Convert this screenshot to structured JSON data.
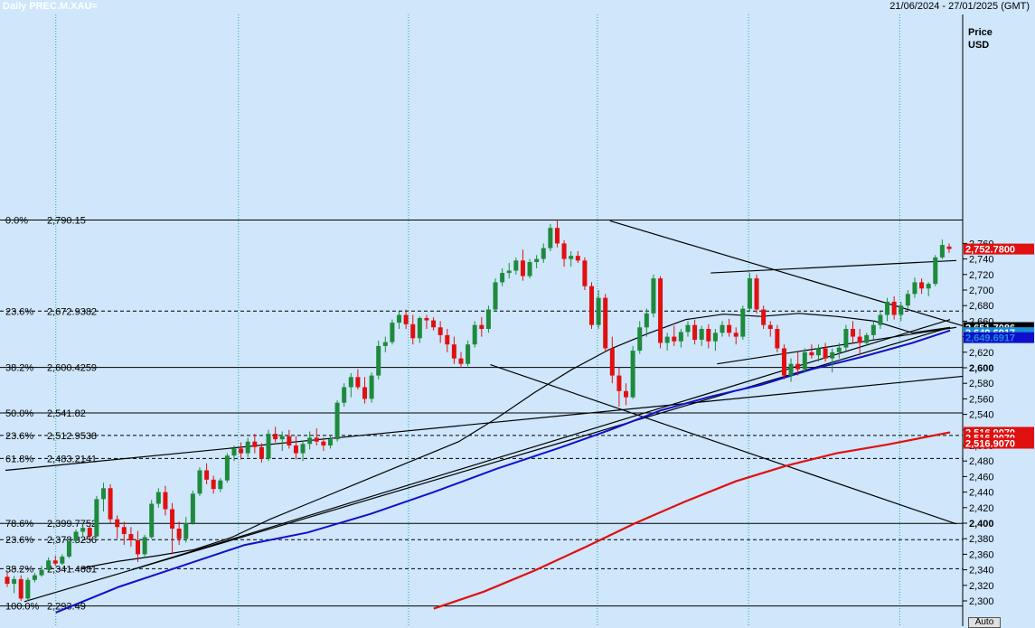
{
  "header": {
    "title": "Daily PREC.M.XAU=",
    "date_range": "21/06/2024 - 27/01/2025 (GMT)"
  },
  "axis": {
    "title_line1": "Price",
    "title_line2": "USD",
    "ticks": [
      2300,
      2320,
      2340,
      2360,
      2380,
      2400,
      2420,
      2440,
      2460,
      2480,
      2500,
      2520,
      2540,
      2560,
      2580,
      2600,
      2620,
      2640,
      2660,
      2680,
      2700,
      2720,
      2740,
      2760
    ],
    "tick_labels": [
      "2,300",
      "2,320",
      "2,340",
      "2,360",
      "2,380",
      "2,400",
      "2,420",
      "2,440",
      "2,460",
      "2,480",
      "2,500",
      "2,520",
      "2,540",
      "2,560",
      "2,580",
      "2,600",
      "2,620",
      "2,640",
      "2,660",
      "2,680",
      "2,700",
      "2,720",
      "2,740",
      "2,760"
    ],
    "bold_ticks": [
      2400,
      2600
    ]
  },
  "auto_button": "Auto",
  "colors": {
    "background": "#cfe6fb",
    "bull": "#1e8a3c",
    "bear": "#e01010",
    "ma_short": "#000000",
    "ma_mid": "#1010cc",
    "ma_long": "#e01010",
    "grid": "#2aa89a"
  },
  "chart_data": {
    "type": "candlestick",
    "y_range": [
      2290,
      2792
    ],
    "x_range_days": 152,
    "fib_levels": [
      {
        "pct": "0.0%",
        "label": "2,790.15",
        "value": 2790.15,
        "style": "solid"
      },
      {
        "pct": "23.6%",
        "label": "2,672.9382",
        "value": 2672.9382,
        "style": "dashed"
      },
      {
        "pct": "38.2%",
        "label": "2,600.4259",
        "value": 2600.4259,
        "style": "solid"
      },
      {
        "pct": "50.0%",
        "label": "2,541.82",
        "value": 2541.82,
        "style": "solid"
      },
      {
        "pct": "23.6%",
        "label": "2,512.9538",
        "value": 2512.9538,
        "style": "dashed"
      },
      {
        "pct": "61.8%",
        "label": "2,483.2141",
        "value": 2483.2141,
        "style": "dashed"
      },
      {
        "pct": "78.6%",
        "label": "2,399.7752",
        "value": 2399.7752,
        "style": "solid"
      },
      {
        "pct": "23.6%",
        "label": "2,378.8256",
        "value": 2378.8256,
        "style": "dashed"
      },
      {
        "pct": "38.2%",
        "label": "2,341.4681",
        "value": 2341.4681,
        "style": "dashed"
      },
      {
        "pct": "100.0%",
        "label": "2,293.49",
        "value": 2293.49,
        "style": "solid"
      }
    ],
    "badges": [
      {
        "label": "2,752.7800",
        "value": 2752.78,
        "color": "#e01010",
        "text_color": "#ffffff"
      },
      {
        "label": "2,651.7086",
        "value": 2651.7086,
        "color": "#000000",
        "text_color": "#ffffff"
      },
      {
        "label": "2,649.6917",
        "value": 2645.2,
        "color": "#1a8fd6",
        "text_color": "#ffffff"
      },
      {
        "label": "2,649.6917",
        "value": 2638.8,
        "color": "#1010cc",
        "text_color": "#1a8fd6"
      },
      {
        "label": "2,516.9070",
        "value": 2516.907,
        "color": "#e01010",
        "text_color": "#ffffff"
      },
      {
        "label": "2,516.9070",
        "value": 2509.9,
        "color": "#e01010",
        "text_color": "#ffffff"
      },
      {
        "label": "2,516.9070",
        "value": 2502.9,
        "color": "#e01010",
        "text_color": "#ffffff"
      }
    ],
    "vertical_grid_days": [
      8,
      37,
      64,
      94,
      118,
      142
    ],
    "trendlines": [
      {
        "x1": 0,
        "y1": 2468,
        "x2": 152,
        "y2": 2589
      },
      {
        "x1": 3,
        "y1": 2299,
        "x2": 150,
        "y2": 2652
      },
      {
        "x1": 20,
        "y1": 2340,
        "x2": 150,
        "y2": 2662
      },
      {
        "x1": 96,
        "y1": 2789,
        "x2": 152,
        "y2": 2654
      },
      {
        "x1": 77,
        "y1": 2604,
        "x2": 151,
        "y2": 2399
      },
      {
        "x1": 112,
        "y1": 2722,
        "x2": 151,
        "y2": 2738
      },
      {
        "x1": 113,
        "y1": 2605,
        "x2": 151,
        "y2": 2652
      }
    ],
    "ma_short": [
      [
        12,
        2342
      ],
      [
        18,
        2351
      ],
      [
        24,
        2358
      ],
      [
        30,
        2366
      ],
      [
        36,
        2382
      ],
      [
        42,
        2405
      ],
      [
        48,
        2425
      ],
      [
        54,
        2445
      ],
      [
        60,
        2465
      ],
      [
        66,
        2485
      ],
      [
        72,
        2505
      ],
      [
        78,
        2535
      ],
      [
        84,
        2568
      ],
      [
        90,
        2598
      ],
      [
        96,
        2624
      ],
      [
        102,
        2644
      ],
      [
        108,
        2662
      ],
      [
        114,
        2669
      ],
      [
        120,
        2666
      ],
      [
        126,
        2670
      ],
      [
        132,
        2666
      ],
      [
        138,
        2660
      ],
      [
        144,
        2645
      ],
      [
        150,
        2652
      ]
    ],
    "ma_mid": [
      [
        8,
        2285
      ],
      [
        18,
        2318
      ],
      [
        28,
        2345
      ],
      [
        38,
        2372
      ],
      [
        48,
        2388
      ],
      [
        58,
        2412
      ],
      [
        68,
        2440
      ],
      [
        78,
        2470
      ],
      [
        88,
        2497
      ],
      [
        96,
        2520
      ],
      [
        104,
        2545
      ],
      [
        112,
        2563
      ],
      [
        120,
        2578
      ],
      [
        128,
        2598
      ],
      [
        136,
        2614
      ],
      [
        144,
        2632
      ],
      [
        150,
        2648
      ]
    ],
    "ma_long": [
      [
        68,
        2290
      ],
      [
        76,
        2312
      ],
      [
        84,
        2339
      ],
      [
        92,
        2369
      ],
      [
        100,
        2400
      ],
      [
        108,
        2428
      ],
      [
        116,
        2454
      ],
      [
        124,
        2474
      ],
      [
        132,
        2490
      ],
      [
        140,
        2501
      ],
      [
        150,
        2517
      ]
    ],
    "candles": [
      [
        2331,
        2337,
        2318,
        2322
      ],
      [
        2322,
        2332,
        2310,
        2328
      ],
      [
        2328,
        2333,
        2300,
        2303
      ],
      [
        2303,
        2330,
        2300,
        2327
      ],
      [
        2327,
        2336,
        2324,
        2333
      ],
      [
        2333,
        2345,
        2331,
        2340
      ],
      [
        2340,
        2356,
        2338,
        2352
      ],
      [
        2352,
        2358,
        2345,
        2348
      ],
      [
        2348,
        2360,
        2346,
        2357
      ],
      [
        2357,
        2380,
        2355,
        2377
      ],
      [
        2377,
        2392,
        2374,
        2389
      ],
      [
        2389,
        2399,
        2382,
        2394
      ],
      [
        2394,
        2396,
        2380,
        2383
      ],
      [
        2383,
        2435,
        2381,
        2431
      ],
      [
        2431,
        2452,
        2415,
        2445
      ],
      [
        2445,
        2450,
        2400,
        2405
      ],
      [
        2405,
        2410,
        2380,
        2395
      ],
      [
        2395,
        2402,
        2372,
        2386
      ],
      [
        2386,
        2395,
        2370,
        2378
      ],
      [
        2378,
        2390,
        2350,
        2360
      ],
      [
        2360,
        2385,
        2355,
        2382
      ],
      [
        2382,
        2430,
        2380,
        2425
      ],
      [
        2425,
        2445,
        2420,
        2440
      ],
      [
        2440,
        2448,
        2410,
        2418
      ],
      [
        2418,
        2426,
        2360,
        2393
      ],
      [
        2393,
        2402,
        2372,
        2380
      ],
      [
        2380,
        2408,
        2375,
        2400
      ],
      [
        2400,
        2442,
        2398,
        2438
      ],
      [
        2438,
        2472,
        2435,
        2468
      ],
      [
        2468,
        2477,
        2450,
        2456
      ],
      [
        2456,
        2461,
        2438,
        2444
      ],
      [
        2444,
        2458,
        2440,
        2455
      ],
      [
        2455,
        2490,
        2452,
        2487
      ],
      [
        2487,
        2500,
        2480,
        2496
      ],
      [
        2496,
        2504,
        2482,
        2490
      ],
      [
        2490,
        2510,
        2485,
        2505
      ],
      [
        2505,
        2515,
        2490,
        2498
      ],
      [
        2498,
        2503,
        2478,
        2483
      ],
      [
        2483,
        2520,
        2480,
        2515
      ],
      [
        2515,
        2524,
        2504,
        2508
      ],
      [
        2508,
        2518,
        2493,
        2512
      ],
      [
        2512,
        2520,
        2496,
        2500
      ],
      [
        2500,
        2512,
        2482,
        2490
      ],
      [
        2490,
        2506,
        2480,
        2502
      ],
      [
        2502,
        2518,
        2495,
        2510
      ],
      [
        2510,
        2522,
        2500,
        2505
      ],
      [
        2505,
        2510,
        2493,
        2500
      ],
      [
        2500,
        2512,
        2496,
        2508
      ],
      [
        2508,
        2558,
        2505,
        2555
      ],
      [
        2555,
        2580,
        2550,
        2575
      ],
      [
        2575,
        2593,
        2562,
        2588
      ],
      [
        2588,
        2598,
        2572,
        2575
      ],
      [
        2575,
        2588,
        2554,
        2560
      ],
      [
        2560,
        2594,
        2555,
        2590
      ],
      [
        2590,
        2635,
        2585,
        2628
      ],
      [
        2628,
        2640,
        2620,
        2633
      ],
      [
        2633,
        2662,
        2630,
        2658
      ],
      [
        2658,
        2672,
        2650,
        2668
      ],
      [
        2668,
        2675,
        2650,
        2656
      ],
      [
        2656,
        2668,
        2630,
        2638
      ],
      [
        2638,
        2666,
        2632,
        2664
      ],
      [
        2664,
        2668,
        2650,
        2661
      ],
      [
        2661,
        2665,
        2648,
        2652
      ],
      [
        2652,
        2660,
        2632,
        2642
      ],
      [
        2642,
        2650,
        2620,
        2630
      ],
      [
        2630,
        2640,
        2605,
        2612
      ],
      [
        2612,
        2620,
        2600,
        2605
      ],
      [
        2605,
        2635,
        2602,
        2630
      ],
      [
        2630,
        2660,
        2626,
        2655
      ],
      [
        2655,
        2665,
        2640,
        2650
      ],
      [
        2650,
        2680,
        2645,
        2675
      ],
      [
        2675,
        2715,
        2672,
        2710
      ],
      [
        2710,
        2728,
        2705,
        2722
      ],
      [
        2722,
        2735,
        2715,
        2725
      ],
      [
        2725,
        2742,
        2720,
        2738
      ],
      [
        2738,
        2752,
        2712,
        2718
      ],
      [
        2718,
        2740,
        2715,
        2736
      ],
      [
        2736,
        2745,
        2728,
        2740
      ],
      [
        2740,
        2760,
        2735,
        2754
      ],
      [
        2754,
        2785,
        2750,
        2780
      ],
      [
        2780,
        2790,
        2755,
        2760
      ],
      [
        2760,
        2764,
        2730,
        2740
      ],
      [
        2740,
        2750,
        2730,
        2744
      ],
      [
        2744,
        2750,
        2735,
        2738
      ],
      [
        2738,
        2742,
        2700,
        2705
      ],
      [
        2705,
        2710,
        2650,
        2655
      ],
      [
        2655,
        2700,
        2650,
        2690
      ],
      [
        2690,
        2695,
        2620,
        2625
      ],
      [
        2625,
        2640,
        2580,
        2590
      ],
      [
        2590,
        2600,
        2550,
        2570
      ],
      [
        2570,
        2580,
        2552,
        2562
      ],
      [
        2562,
        2628,
        2560,
        2622
      ],
      [
        2622,
        2660,
        2618,
        2652
      ],
      [
        2652,
        2676,
        2640,
        2670
      ],
      [
        2670,
        2720,
        2665,
        2715
      ],
      [
        2715,
        2718,
        2625,
        2632
      ],
      [
        2632,
        2645,
        2622,
        2640
      ],
      [
        2640,
        2654,
        2628,
        2634
      ],
      [
        2634,
        2650,
        2626,
        2646
      ],
      [
        2646,
        2660,
        2640,
        2655
      ],
      [
        2655,
        2662,
        2630,
        2636
      ],
      [
        2636,
        2654,
        2628,
        2650
      ],
      [
        2650,
        2656,
        2625,
        2634
      ],
      [
        2634,
        2650,
        2622,
        2645
      ],
      [
        2645,
        2660,
        2640,
        2655
      ],
      [
        2655,
        2663,
        2640,
        2645
      ],
      [
        2645,
        2652,
        2630,
        2640
      ],
      [
        2640,
        2680,
        2636,
        2676
      ],
      [
        2676,
        2722,
        2672,
        2715
      ],
      [
        2715,
        2720,
        2670,
        2675
      ],
      [
        2675,
        2680,
        2650,
        2655
      ],
      [
        2655,
        2660,
        2640,
        2650
      ],
      [
        2650,
        2655,
        2620,
        2625
      ],
      [
        2625,
        2630,
        2585,
        2590
      ],
      [
        2590,
        2612,
        2582,
        2605
      ],
      [
        2605,
        2620,
        2590,
        2598
      ],
      [
        2598,
        2625,
        2594,
        2620
      ],
      [
        2620,
        2630,
        2612,
        2616
      ],
      [
        2616,
        2630,
        2608,
        2625
      ],
      [
        2625,
        2632,
        2608,
        2612
      ],
      [
        2612,
        2625,
        2594,
        2620
      ],
      [
        2620,
        2632,
        2612,
        2626
      ],
      [
        2626,
        2655,
        2622,
        2650
      ],
      [
        2650,
        2660,
        2632,
        2640
      ],
      [
        2640,
        2650,
        2616,
        2632
      ],
      [
        2632,
        2645,
        2628,
        2642
      ],
      [
        2642,
        2660,
        2636,
        2655
      ],
      [
        2655,
        2672,
        2650,
        2668
      ],
      [
        2668,
        2690,
        2660,
        2685
      ],
      [
        2685,
        2692,
        2662,
        2668
      ],
      [
        2668,
        2685,
        2660,
        2680
      ],
      [
        2680,
        2700,
        2676,
        2695
      ],
      [
        2695,
        2716,
        2690,
        2710
      ],
      [
        2710,
        2715,
        2695,
        2702
      ],
      [
        2702,
        2710,
        2692,
        2708
      ],
      [
        2708,
        2745,
        2705,
        2742
      ],
      [
        2742,
        2765,
        2740,
        2758
      ],
      [
        2756,
        2760,
        2748,
        2752.78
      ]
    ]
  }
}
